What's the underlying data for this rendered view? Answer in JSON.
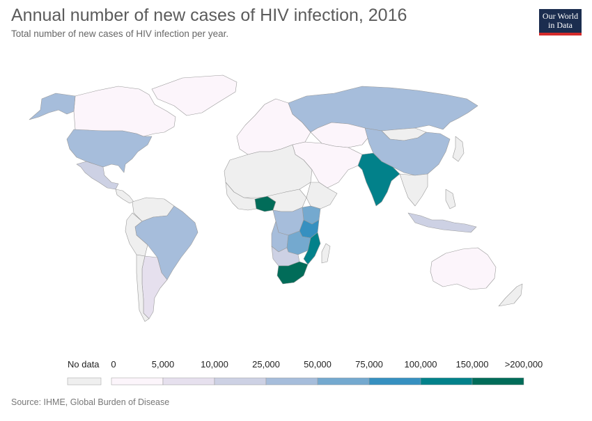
{
  "header": {
    "title": "Annual number of new cases of HIV infection, 2016",
    "subtitle": "Total number of new cases of HIV infection per year.",
    "logo_line1": "Our World",
    "logo_line2": "in Data"
  },
  "legend": {
    "no_data_label": "No data",
    "no_data_color": "#efefef",
    "bins": [
      {
        "label": "0",
        "color": "#fcf5fb"
      },
      {
        "label": "5,000",
        "color": "#e6e0ee"
      },
      {
        "label": "10,000",
        "color": "#cdd1e4"
      },
      {
        "label": "25,000",
        "color": "#a6bddb"
      },
      {
        "label": "50,000",
        "color": "#74a9cf"
      },
      {
        "label": "75,000",
        "color": "#3690c0"
      },
      {
        "label": "100,000",
        "color": "#02818a"
      },
      {
        "label": "150,000",
        "color": "#016c59"
      }
    ],
    "last_label": ">200,000"
  },
  "source": "Source: IHME, Global Burden of Disease",
  "map_data": {
    "year": 2016,
    "regions": [
      {
        "name": "Canada",
        "bin": 0
      },
      {
        "name": "Greenland",
        "bin": 0
      },
      {
        "name": "Alaska",
        "bin": 3
      },
      {
        "name": "United States",
        "bin": 3
      },
      {
        "name": "Mexico",
        "bin": 2
      },
      {
        "name": "Brazil",
        "bin": 3
      },
      {
        "name": "Argentina",
        "bin": 1
      },
      {
        "name": "Russia",
        "bin": 3
      },
      {
        "name": "China",
        "bin": 3
      },
      {
        "name": "India",
        "bin": 6
      },
      {
        "name": "Nigeria",
        "bin": 7
      },
      {
        "name": "Kenya",
        "bin": 4
      },
      {
        "name": "Tanzania",
        "bin": 5
      },
      {
        "name": "DR Congo",
        "bin": 3
      },
      {
        "name": "Angola",
        "bin": 3
      },
      {
        "name": "Zambia",
        "bin": 4
      },
      {
        "name": "Zimbabwe",
        "bin": 4
      },
      {
        "name": "Mozambique",
        "bin": 6
      },
      {
        "name": "Uganda",
        "bin": 4
      },
      {
        "name": "South Africa",
        "bin": 7
      },
      {
        "name": "Namibia",
        "bin": 2
      },
      {
        "name": "Botswana",
        "bin": 2
      },
      {
        "name": "Australia",
        "bin": 0
      },
      {
        "name": "Indonesia",
        "bin": 2
      },
      {
        "name": "Europe",
        "bin": 0
      },
      {
        "name": "Middle East",
        "bin": 0
      },
      {
        "name": "Central Asia",
        "bin": 0
      }
    ]
  }
}
